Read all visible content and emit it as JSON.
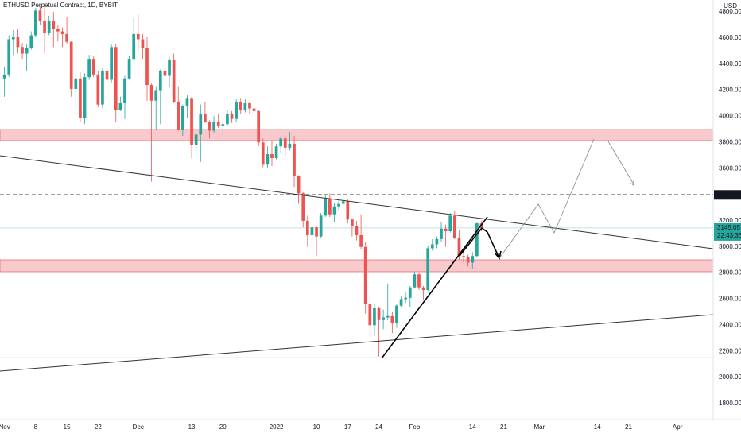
{
  "chart_data": {
    "type": "candlestick",
    "title": "ETHUSD Perpetual Contract, 1D, BYBIT",
    "y_axis_label": "USD",
    "colors": {
      "up": "#26a69a",
      "down": "#ef5350"
    },
    "grid": true,
    "xlim": [
      "2021-10-31",
      "2022-04-09"
    ],
    "ylim": [
      1678,
      4891
    ],
    "yticks": [
      {
        "value": 1800,
        "label": "1800.00"
      },
      {
        "value": 2000,
        "label": "2000.00"
      },
      {
        "value": 2200,
        "label": "2200.00"
      },
      {
        "value": 2400,
        "label": "2400.00"
      },
      {
        "value": 2600,
        "label": "2600.00"
      },
      {
        "value": 2800,
        "label": "2800.00"
      },
      {
        "value": 3000,
        "label": "3000.00"
      },
      {
        "value": 3200,
        "label": "3200.00"
      },
      {
        "value": 3400,
        "label": "3400.00"
      },
      {
        "value": 3600,
        "label": "3600.00"
      },
      {
        "value": 3800,
        "label": "3800.00"
      },
      {
        "value": 4000,
        "label": "4000.00"
      },
      {
        "value": 4200,
        "label": "4200.00"
      },
      {
        "value": 4400,
        "label": "4400.00"
      },
      {
        "value": 4600,
        "label": "4600.00"
      },
      {
        "value": 4800,
        "label": "4800.00"
      }
    ],
    "xticks": [
      {
        "value": "2021-11-01",
        "label": "Nov"
      },
      {
        "value": "2021-11-08",
        "label": "8"
      },
      {
        "value": "2021-11-15",
        "label": "15"
      },
      {
        "value": "2021-11-22",
        "label": "22"
      },
      {
        "value": "2021-12-01",
        "label": "Dec"
      },
      {
        "value": "2021-12-13",
        "label": "13"
      },
      {
        "value": "2021-12-20",
        "label": "20"
      },
      {
        "value": "2022-01-01",
        "label": "2022"
      },
      {
        "value": "2022-01-10",
        "label": "10"
      },
      {
        "value": "2022-01-17",
        "label": "17"
      },
      {
        "value": "2022-01-24",
        "label": "24"
      },
      {
        "value": "2022-02-01",
        "label": "Feb"
      },
      {
        "value": "2022-02-14",
        "label": "14"
      },
      {
        "value": "2022-02-21",
        "label": "21"
      },
      {
        "value": "2022-03-01",
        "label": "Mar"
      },
      {
        "value": "2022-03-14",
        "label": "14"
      },
      {
        "value": "2022-03-21",
        "label": "21"
      },
      {
        "value": "2022-04-01",
        "label": "Apr"
      }
    ],
    "level_line": {
      "value": 3398.4,
      "label": "3398.40"
    },
    "last_price": 3145.05,
    "countdown": "22:43:36",
    "x": [
      "2021-11-01",
      "2021-11-02",
      "2021-11-03",
      "2021-11-04",
      "2021-11-05",
      "2021-11-06",
      "2021-11-07",
      "2021-11-08",
      "2021-11-09",
      "2021-11-10",
      "2021-11-11",
      "2021-11-12",
      "2021-11-13",
      "2021-11-14",
      "2021-11-15",
      "2021-11-16",
      "2021-11-17",
      "2021-11-18",
      "2021-11-19",
      "2021-11-20",
      "2021-11-21",
      "2021-11-22",
      "2021-11-23",
      "2021-11-24",
      "2021-11-25",
      "2021-11-26",
      "2021-11-27",
      "2021-11-28",
      "2021-11-29",
      "2021-11-30",
      "2021-12-01",
      "2021-12-02",
      "2021-12-03",
      "2021-12-04",
      "2021-12-05",
      "2021-12-06",
      "2021-12-07",
      "2021-12-08",
      "2021-12-09",
      "2021-12-10",
      "2021-12-11",
      "2021-12-12",
      "2021-12-13",
      "2021-12-14",
      "2021-12-15",
      "2021-12-16",
      "2021-12-17",
      "2021-12-18",
      "2021-12-19",
      "2021-12-20",
      "2021-12-21",
      "2021-12-22",
      "2021-12-23",
      "2021-12-24",
      "2021-12-25",
      "2021-12-26",
      "2021-12-27",
      "2021-12-28",
      "2021-12-29",
      "2021-12-30",
      "2021-12-31",
      "2022-01-01",
      "2022-01-02",
      "2022-01-03",
      "2022-01-04",
      "2022-01-05",
      "2022-01-06",
      "2022-01-07",
      "2022-01-08",
      "2022-01-09",
      "2022-01-10",
      "2022-01-11",
      "2022-01-12",
      "2022-01-13",
      "2022-01-14",
      "2022-01-15",
      "2022-01-16",
      "2022-01-17",
      "2022-01-18",
      "2022-01-19",
      "2022-01-20",
      "2022-01-21",
      "2022-01-22",
      "2022-01-23",
      "2022-01-24",
      "2022-01-25",
      "2022-01-26",
      "2022-01-27",
      "2022-01-28",
      "2022-01-29",
      "2022-01-30",
      "2022-01-31",
      "2022-02-01",
      "2022-02-02",
      "2022-02-03",
      "2022-02-04",
      "2022-02-05",
      "2022-02-06",
      "2022-02-07",
      "2022-02-08",
      "2022-02-09",
      "2022-02-10",
      "2022-02-11",
      "2022-02-12",
      "2022-02-13",
      "2022-02-14",
      "2022-02-15",
      "2022-02-16"
    ],
    "open": [
      4290,
      4320,
      4590,
      4610,
      4530,
      4480,
      4520,
      4620,
      4810,
      4730,
      4640,
      4730,
      4670,
      4650,
      4630,
      4570,
      4210,
      4290,
      3990,
      4300,
      4440,
      4320,
      4090,
      4350,
      4280,
      4530,
      4050,
      4100,
      4290,
      4440,
      4630,
      4590,
      4520,
      4240,
      4120,
      4200,
      4350,
      4310,
      4430,
      4110,
      3900,
      4080,
      4140,
      3780,
      3860,
      4020,
      3960,
      3890,
      3960,
      3930,
      3940,
      4020,
      3980,
      4110,
      4050,
      4100,
      4060,
      4040,
      3800,
      3630,
      3710,
      3680,
      3770,
      3830,
      3760,
      3790,
      3540,
      3410,
      3200,
      3090,
      3150,
      3080,
      3240,
      3370,
      3250,
      3310,
      3330,
      3350,
      3210,
      3160,
      3090,
      3000,
      2560,
      2400,
      2530,
      2440,
      2460,
      2470,
      2420,
      2550,
      2600,
      2610,
      2690,
      2790,
      2690,
      2670,
      2990,
      3020,
      3060,
      3140,
      3120,
      3240,
      3070,
      2930,
      2920,
      2880,
      2930,
      3180
    ],
    "high": [
      4380,
      4620,
      4660,
      4670,
      4560,
      4550,
      4650,
      4830,
      4840,
      4870,
      4770,
      4800,
      4700,
      4680,
      4760,
      4580,
      4310,
      4340,
      4330,
      4470,
      4460,
      4350,
      4370,
      4380,
      4550,
      4550,
      4150,
      4310,
      4460,
      4750,
      4780,
      4630,
      4610,
      4250,
      4230,
      4360,
      4420,
      4450,
      4480,
      4230,
      4090,
      4160,
      4150,
      3870,
      4090,
      4110,
      3970,
      4000,
      4020,
      3980,
      4050,
      4040,
      4130,
      4140,
      4130,
      4110,
      4130,
      4050,
      3830,
      3770,
      3810,
      3790,
      3850,
      3850,
      3880,
      3850,
      3550,
      3420,
      3240,
      3190,
      3160,
      3260,
      3400,
      3410,
      3340,
      3360,
      3380,
      3370,
      3220,
      3200,
      3250,
      3040,
      2620,
      2560,
      2540,
      2520,
      2720,
      2500,
      2560,
      2620,
      2650,
      2700,
      2810,
      2800,
      2700,
      3010,
      3060,
      3080,
      3190,
      3170,
      3260,
      3280,
      3130,
      2970,
      2940,
      2960,
      3190,
      3200
    ],
    "low": [
      4150,
      4300,
      4470,
      4480,
      4440,
      4350,
      4510,
      4610,
      4700,
      4480,
      4620,
      4530,
      4580,
      4530,
      4550,
      4150,
      4060,
      3960,
      3940,
      4280,
      4300,
      4070,
      4060,
      4200,
      4260,
      3960,
      4040,
      3980,
      4280,
      4420,
      4500,
      4440,
      4120,
      3500,
      3900,
      3940,
      4290,
      4220,
      4100,
      3890,
      3850,
      3990,
      3680,
      3700,
      3650,
      3950,
      3830,
      3870,
      3910,
      3850,
      3930,
      3950,
      3960,
      4020,
      4030,
      4020,
      4030,
      3770,
      3610,
      3600,
      3620,
      3670,
      3720,
      3700,
      3740,
      3460,
      3330,
      3150,
      3000,
      3080,
      2930,
      3070,
      3230,
      3230,
      3190,
      3280,
      3300,
      3180,
      3080,
      3050,
      2980,
      2490,
      2300,
      2320,
      2160,
      2370,
      2440,
      2340,
      2380,
      2540,
      2570,
      2540,
      2680,
      2670,
      2590,
      2660,
      2970,
      2990,
      3040,
      3000,
      3110,
      3060,
      2900,
      2880,
      2850,
      2830,
      2920,
      3120
    ],
    "close": [
      4320,
      4590,
      4610,
      4530,
      4480,
      4520,
      4620,
      4810,
      4730,
      4640,
      4730,
      4670,
      4650,
      4630,
      4570,
      4210,
      4290,
      3990,
      4300,
      4440,
      4320,
      4090,
      4350,
      4280,
      4530,
      4050,
      4100,
      4290,
      4440,
      4630,
      4590,
      4520,
      4240,
      4120,
      4200,
      4350,
      4310,
      4430,
      4110,
      3900,
      4080,
      4140,
      3780,
      3860,
      4020,
      3960,
      3890,
      3960,
      3930,
      3940,
      4020,
      3980,
      4110,
      4050,
      4100,
      4060,
      4040,
      3800,
      3630,
      3710,
      3680,
      3770,
      3830,
      3760,
      3790,
      3540,
      3410,
      3200,
      3090,
      3150,
      3080,
      3240,
      3370,
      3250,
      3310,
      3330,
      3350,
      3210,
      3160,
      3090,
      3000,
      2560,
      2400,
      2530,
      2440,
      2460,
      2470,
      2420,
      2550,
      2600,
      2610,
      2690,
      2790,
      2690,
      2670,
      2990,
      3020,
      3060,
      3140,
      3120,
      3240,
      3070,
      2930,
      2920,
      2880,
      2930,
      3180,
      3145
    ]
  }
}
